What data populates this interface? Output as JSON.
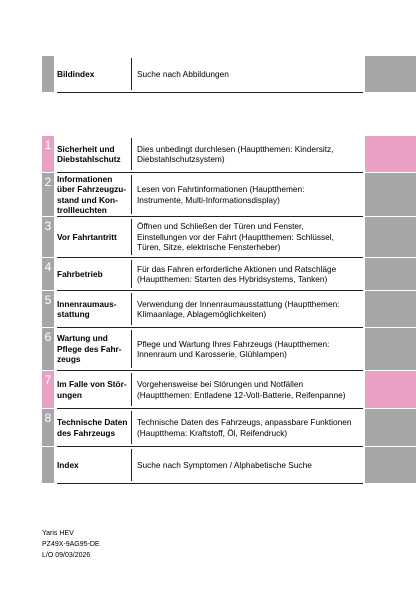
{
  "header": {
    "title": "Bildindex",
    "description": "Suche nach Abbildungen"
  },
  "sections": [
    {
      "number": "1",
      "title": "Sicherheit und\nDiebstahlschutz",
      "description": "Dies unbedingt durchlesen (Hauptthemen: Kindersitz,\nDiebstahlschutzsystem)",
      "color": "#e8a1c4"
    },
    {
      "number": "2",
      "title": "Informationen\nüber Fahrzeugzu-\nstand und Kon-\ntrollleuchten",
      "description": "Lesen von Fahrtinformationen (Hauptthemen:\nInstrumente, Multi-Informationsdisplay)",
      "color": "#a6a6a6"
    },
    {
      "number": "3",
      "title": "Vor Fahrtantritt",
      "description": "Öffnen und Schließen der Türen und Fenster,\nEinstellungen vor der Fahrt (Hauptthemen: Schlüssel,\nTüren, Sitze, elektrische Fensterheber)",
      "color": "#a6a6a6"
    },
    {
      "number": "4",
      "title": "Fahrbetrieb",
      "description": "Für das Fahren erforderliche Aktionen und Ratschläge\n(Hauptthemen: Starten des Hybridsystems, Tanken)",
      "color": "#a6a6a6"
    },
    {
      "number": "5",
      "title": "Innenraumaus-\nstattung",
      "description": "Verwendung der Innenraumausstattung (Hauptthemen:\nKlimaanlage, Ablagemöglichkeiten)",
      "color": "#a6a6a6"
    },
    {
      "number": "6",
      "title": "Wartung und\nPflege des Fahr-\nzeugs",
      "description": "Pflege und Wartung Ihres Fahrzeugs (Hauptthemen:\nInnenraum und Karosserie, Glühlampen)",
      "color": "#a6a6a6"
    },
    {
      "number": "7",
      "title": "Im Falle von Stör-\nungen",
      "description": "Vorgehensweise bei Störungen und Notfällen\n(Hauptthemen: Entladene 12-Volt-Batterie, Reifenpanne)",
      "color": "#e8a1c4"
    },
    {
      "number": "8",
      "title": "Technische Daten\ndes Fahrzeugs",
      "description": "Technische Daten des Fahrzeugs, anpassbare Funktionen\n(Hauptthema: Kraftstoff, Öl, Reifendruck)",
      "color": "#a6a6a6"
    }
  ],
  "index": {
    "title": "Index",
    "description": "Suche nach Symptomen / Alphabetische Suche"
  },
  "footer": [
    "Yaris HEV",
    "PZ49X-9AG95-DE",
    "L/O 09/03/2026"
  ]
}
